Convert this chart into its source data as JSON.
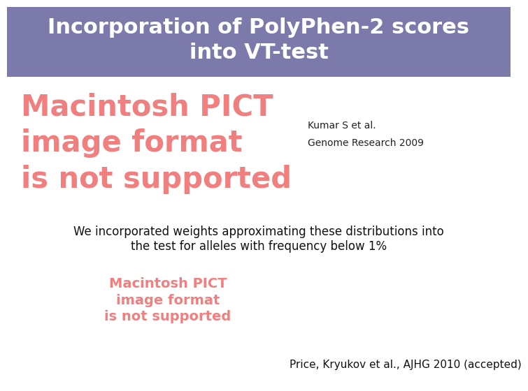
{
  "title_line1": "Incorporation of PolyPhen-2 scores",
  "title_line2": "into VT-test",
  "title_bg_color": "#7b7aaa",
  "title_text_color": "#ffffff",
  "title_fontsize": 22,
  "bg_color": "#ffffff",
  "pict_color": "#f08080",
  "pict_text1": "Macintosh PICT\nimage format\nis not supported",
  "pict_text2": "Macintosh PICT\nimage format\nis not supported",
  "citation1_line1": "Kumar S et al.",
  "citation1_line2": "Genome Research 2009",
  "citation1_fontsize": 10,
  "citation1_color": "#222222",
  "body_text_line1": "We incorporated weights approximating these distributions into",
  "body_text_line2": "the test for alleles with frequency below 1%",
  "body_fontsize": 12,
  "body_color": "#111111",
  "footer_text": "Price, Kryukov et al., AJHG 2010 (accepted)",
  "footer_fontsize": 11,
  "footer_color": "#111111"
}
